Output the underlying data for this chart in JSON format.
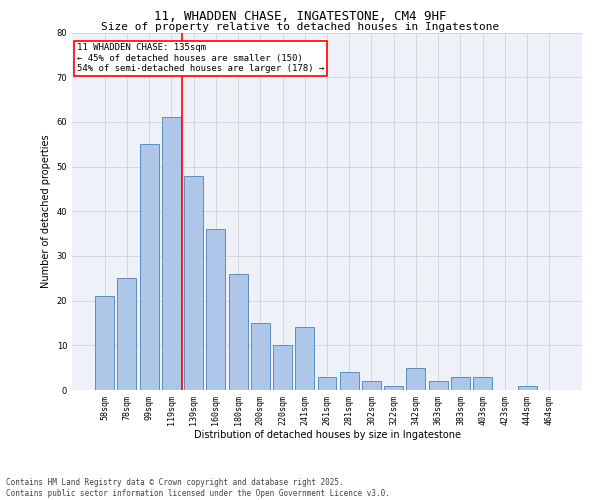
{
  "title": "11, WHADDEN CHASE, INGATESTONE, CM4 9HF",
  "subtitle": "Size of property relative to detached houses in Ingatestone",
  "xlabel": "Distribution of detached houses by size in Ingatestone",
  "ylabel": "Number of detached properties",
  "categories": [
    "58sqm",
    "78sqm",
    "99sqm",
    "119sqm",
    "139sqm",
    "160sqm",
    "180sqm",
    "200sqm",
    "220sqm",
    "241sqm",
    "261sqm",
    "281sqm",
    "302sqm",
    "322sqm",
    "342sqm",
    "363sqm",
    "383sqm",
    "403sqm",
    "423sqm",
    "444sqm",
    "464sqm"
  ],
  "values": [
    21,
    25,
    55,
    61,
    48,
    36,
    26,
    15,
    10,
    14,
    3,
    4,
    2,
    1,
    5,
    2,
    3,
    3,
    0,
    1,
    0
  ],
  "bar_color": "#aec6e8",
  "bar_edge_color": "#5a8fc2",
  "red_line_index": 4,
  "annotation_text": "11 WHADDEN CHASE: 135sqm\n← 45% of detached houses are smaller (150)\n54% of semi-detached houses are larger (178) →",
  "annotation_box_color": "white",
  "annotation_box_edge": "red",
  "ylim": [
    0,
    80
  ],
  "yticks": [
    0,
    10,
    20,
    30,
    40,
    50,
    60,
    70,
    80
  ],
  "grid_color": "#cccccc",
  "background_color": "#eef2f8",
  "footer": "Contains HM Land Registry data © Crown copyright and database right 2025.\nContains public sector information licensed under the Open Government Licence v3.0.",
  "title_fontsize": 9,
  "subtitle_fontsize": 8,
  "label_fontsize": 7,
  "tick_fontsize": 6,
  "annotation_fontsize": 6.5,
  "footer_fontsize": 5.5
}
